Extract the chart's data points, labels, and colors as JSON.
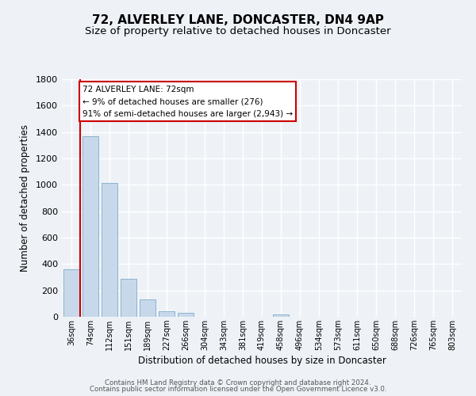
{
  "title": "72, ALVERLEY LANE, DONCASTER, DN4 9AP",
  "subtitle": "Size of property relative to detached houses in Doncaster",
  "xlabel": "Distribution of detached houses by size in Doncaster",
  "ylabel": "Number of detached properties",
  "footer_line1": "Contains HM Land Registry data © Crown copyright and database right 2024.",
  "footer_line2": "Contains public sector information licensed under the Open Government Licence v3.0.",
  "bar_labels": [
    "36sqm",
    "74sqm",
    "112sqm",
    "151sqm",
    "189sqm",
    "227sqm",
    "266sqm",
    "304sqm",
    "343sqm",
    "381sqm",
    "419sqm",
    "458sqm",
    "496sqm",
    "534sqm",
    "573sqm",
    "611sqm",
    "650sqm",
    "688sqm",
    "726sqm",
    "765sqm",
    "803sqm"
  ],
  "bar_values": [
    358,
    1370,
    1015,
    290,
    130,
    43,
    32,
    0,
    0,
    0,
    0,
    20,
    0,
    0,
    0,
    0,
    0,
    0,
    0,
    0,
    0
  ],
  "bar_color": "#c8d8eb",
  "bar_edgecolor": "#8ab4cc",
  "annotation_title": "72 ALVERLEY LANE: 72sqm",
  "annotation_line1": "← 9% of detached houses are smaller (276)",
  "annotation_line2": "91% of semi-detached houses are larger (2,943) →",
  "annotation_box_color": "#ffffff",
  "annotation_box_edgecolor": "#cc0000",
  "property_line_color": "#cc0000",
  "ylim": [
    0,
    1800
  ],
  "yticks": [
    0,
    200,
    400,
    600,
    800,
    1000,
    1200,
    1400,
    1600,
    1800
  ],
  "background_color": "#eef2f7",
  "grid_color": "#ffffff",
  "title_fontsize": 11,
  "subtitle_fontsize": 9.5
}
